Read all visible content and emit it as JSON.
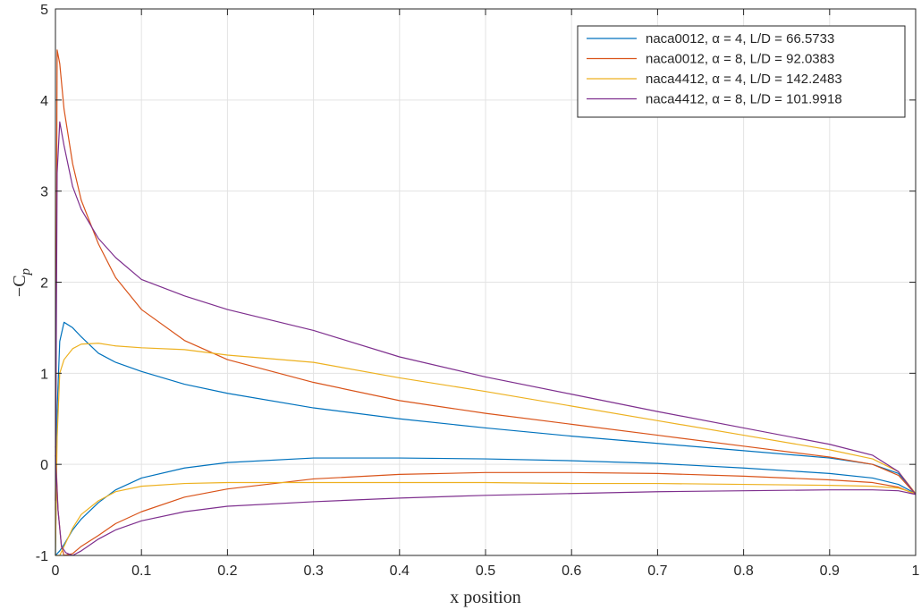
{
  "chart_data": {
    "type": "line",
    "title": "",
    "xlabel": "x position",
    "ylabel_main": "−C",
    "ylabel_sub": "p",
    "xlim": [
      0,
      1
    ],
    "ylim": [
      -1,
      5
    ],
    "xticks": [
      0,
      0.1,
      0.2,
      0.3,
      0.4,
      0.5,
      0.6,
      0.7,
      0.8,
      0.9,
      1
    ],
    "xtick_labels": [
      "0",
      "0.1",
      "0.2",
      "0.3",
      "0.4",
      "0.5",
      "0.6",
      "0.7",
      "0.8",
      "0.9",
      "1"
    ],
    "yticks": [
      -1,
      0,
      1,
      2,
      3,
      4,
      5
    ],
    "ytick_labels": [
      "-1",
      "0",
      "1",
      "2",
      "3",
      "4",
      "5"
    ],
    "grid": true,
    "legend_position": "top-right",
    "series": [
      {
        "name": "naca0012, α = 4, L/D = 66.5733",
        "color": "#0072BD",
        "upper": [
          [
            0,
            -1.0
          ],
          [
            0.002,
            0.6
          ],
          [
            0.005,
            1.35
          ],
          [
            0.01,
            1.56
          ],
          [
            0.02,
            1.5
          ],
          [
            0.03,
            1.4
          ],
          [
            0.05,
            1.22
          ],
          [
            0.07,
            1.12
          ],
          [
            0.1,
            1.02
          ],
          [
            0.15,
            0.88
          ],
          [
            0.2,
            0.78
          ],
          [
            0.3,
            0.62
          ],
          [
            0.4,
            0.5
          ],
          [
            0.5,
            0.4
          ],
          [
            0.6,
            0.31
          ],
          [
            0.7,
            0.23
          ],
          [
            0.8,
            0.15
          ],
          [
            0.9,
            0.07
          ],
          [
            0.95,
            0.0
          ],
          [
            0.98,
            -0.1
          ],
          [
            1.0,
            -0.32
          ]
        ],
        "lower": [
          [
            0,
            -1.0
          ],
          [
            0.005,
            -0.95
          ],
          [
            0.01,
            -0.88
          ],
          [
            0.02,
            -0.72
          ],
          [
            0.03,
            -0.6
          ],
          [
            0.05,
            -0.42
          ],
          [
            0.07,
            -0.28
          ],
          [
            0.1,
            -0.15
          ],
          [
            0.15,
            -0.04
          ],
          [
            0.2,
            0.02
          ],
          [
            0.3,
            0.07
          ],
          [
            0.4,
            0.07
          ],
          [
            0.5,
            0.06
          ],
          [
            0.6,
            0.04
          ],
          [
            0.7,
            0.01
          ],
          [
            0.8,
            -0.04
          ],
          [
            0.9,
            -0.1
          ],
          [
            0.95,
            -0.15
          ],
          [
            0.98,
            -0.22
          ],
          [
            1.0,
            -0.32
          ]
        ]
      },
      {
        "name": "naca0012, α = 8, L/D = 92.0383",
        "color": "#D95319",
        "upper": [
          [
            0,
            -0.5
          ],
          [
            0.002,
            4.55
          ],
          [
            0.005,
            4.4
          ],
          [
            0.01,
            3.9
          ],
          [
            0.02,
            3.3
          ],
          [
            0.03,
            2.9
          ],
          [
            0.05,
            2.42
          ],
          [
            0.07,
            2.05
          ],
          [
            0.1,
            1.7
          ],
          [
            0.15,
            1.36
          ],
          [
            0.2,
            1.15
          ],
          [
            0.3,
            0.9
          ],
          [
            0.4,
            0.7
          ],
          [
            0.5,
            0.56
          ],
          [
            0.6,
            0.44
          ],
          [
            0.7,
            0.32
          ],
          [
            0.8,
            0.2
          ],
          [
            0.9,
            0.08
          ],
          [
            0.95,
            0.0
          ],
          [
            0.98,
            -0.12
          ],
          [
            1.0,
            -0.33
          ]
        ],
        "lower": [
          [
            0,
            0.2
          ],
          [
            0.003,
            -0.5
          ],
          [
            0.007,
            -0.9
          ],
          [
            0.01,
            -1.0
          ],
          [
            0.02,
            -0.98
          ],
          [
            0.03,
            -0.9
          ],
          [
            0.05,
            -0.78
          ],
          [
            0.07,
            -0.65
          ],
          [
            0.1,
            -0.52
          ],
          [
            0.15,
            -0.36
          ],
          [
            0.2,
            -0.27
          ],
          [
            0.3,
            -0.16
          ],
          [
            0.4,
            -0.11
          ],
          [
            0.5,
            -0.09
          ],
          [
            0.6,
            -0.09
          ],
          [
            0.7,
            -0.1
          ],
          [
            0.8,
            -0.13
          ],
          [
            0.9,
            -0.17
          ],
          [
            0.95,
            -0.2
          ],
          [
            0.98,
            -0.25
          ],
          [
            1.0,
            -0.33
          ]
        ]
      },
      {
        "name": "naca4412, α = 4, L/D = 142.2483",
        "color": "#EDB120",
        "upper": [
          [
            0,
            -1.0
          ],
          [
            0.002,
            0.3
          ],
          [
            0.005,
            1.0
          ],
          [
            0.01,
            1.15
          ],
          [
            0.02,
            1.27
          ],
          [
            0.03,
            1.32
          ],
          [
            0.05,
            1.33
          ],
          [
            0.07,
            1.3
          ],
          [
            0.1,
            1.28
          ],
          [
            0.15,
            1.26
          ],
          [
            0.2,
            1.2
          ],
          [
            0.3,
            1.12
          ],
          [
            0.4,
            0.95
          ],
          [
            0.5,
            0.8
          ],
          [
            0.6,
            0.64
          ],
          [
            0.7,
            0.48
          ],
          [
            0.8,
            0.32
          ],
          [
            0.9,
            0.16
          ],
          [
            0.95,
            0.06
          ],
          [
            0.98,
            -0.08
          ],
          [
            1.0,
            -0.32
          ]
        ],
        "lower": [
          [
            0,
            -1.0
          ],
          [
            0.005,
            -1.0
          ],
          [
            0.01,
            -0.9
          ],
          [
            0.02,
            -0.7
          ],
          [
            0.03,
            -0.55
          ],
          [
            0.05,
            -0.4
          ],
          [
            0.07,
            -0.3
          ],
          [
            0.1,
            -0.24
          ],
          [
            0.15,
            -0.21
          ],
          [
            0.2,
            -0.2
          ],
          [
            0.3,
            -0.2
          ],
          [
            0.4,
            -0.2
          ],
          [
            0.5,
            -0.2
          ],
          [
            0.6,
            -0.21
          ],
          [
            0.7,
            -0.21
          ],
          [
            0.8,
            -0.22
          ],
          [
            0.9,
            -0.23
          ],
          [
            0.95,
            -0.24
          ],
          [
            0.98,
            -0.26
          ],
          [
            1.0,
            -0.32
          ]
        ]
      },
      {
        "name": "naca4412, α = 8, L/D = 101.9918",
        "color": "#7E2F8E",
        "upper": [
          [
            0,
            -0.4
          ],
          [
            0.002,
            3.2
          ],
          [
            0.005,
            3.76
          ],
          [
            0.01,
            3.5
          ],
          [
            0.02,
            3.05
          ],
          [
            0.03,
            2.8
          ],
          [
            0.05,
            2.48
          ],
          [
            0.07,
            2.27
          ],
          [
            0.1,
            2.03
          ],
          [
            0.15,
            1.85
          ],
          [
            0.2,
            1.7
          ],
          [
            0.3,
            1.47
          ],
          [
            0.4,
            1.18
          ],
          [
            0.5,
            0.96
          ],
          [
            0.6,
            0.77
          ],
          [
            0.7,
            0.58
          ],
          [
            0.8,
            0.4
          ],
          [
            0.9,
            0.22
          ],
          [
            0.95,
            0.1
          ],
          [
            0.98,
            -0.08
          ],
          [
            1.0,
            -0.33
          ]
        ],
        "lower": [
          [
            0,
            0.1
          ],
          [
            0.003,
            -0.5
          ],
          [
            0.007,
            -0.9
          ],
          [
            0.012,
            -0.97
          ],
          [
            0.02,
            -1.0
          ],
          [
            0.03,
            -0.95
          ],
          [
            0.05,
            -0.82
          ],
          [
            0.07,
            -0.72
          ],
          [
            0.1,
            -0.62
          ],
          [
            0.15,
            -0.52
          ],
          [
            0.2,
            -0.46
          ],
          [
            0.3,
            -0.41
          ],
          [
            0.4,
            -0.37
          ],
          [
            0.5,
            -0.34
          ],
          [
            0.6,
            -0.32
          ],
          [
            0.7,
            -0.3
          ],
          [
            0.8,
            -0.29
          ],
          [
            0.9,
            -0.28
          ],
          [
            0.95,
            -0.28
          ],
          [
            0.98,
            -0.29
          ],
          [
            1.0,
            -0.33
          ]
        ]
      }
    ]
  }
}
